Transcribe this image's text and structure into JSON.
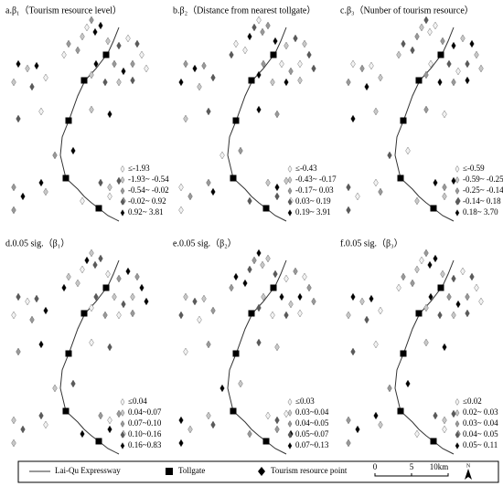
{
  "panels": [
    {
      "title": "a.β₁（Tourism resource level）",
      "legend": [
        "≤-1.93",
        "-1.93~ -0.54",
        "-0.54~ -0.02",
        "-0.02~ 0.92",
        "0.92~ 3.81"
      ]
    },
    {
      "title": "b.β₂（Distance from nearest tollgate）",
      "legend": [
        "≤-0.43",
        "-0.43~ -0.17",
        "-0.17~ 0.03",
        "0.03~ 0.19",
        "0.19~ 3.91"
      ]
    },
    {
      "title": "c.β₃（Nunber of tourism resource）",
      "legend": [
        "≤-0.59",
        "-0.59~ -0.25",
        "-0.25~ -0.14",
        "-0.14~ 0.18",
        "0.18~ 3.70"
      ]
    },
    {
      "title": "d.0.05 sig.（β₁）",
      "legend": [
        "≤0.04",
        "0.04~0.07",
        "0.07~0.10",
        "0.10~0.16",
        "0.16~0.83"
      ]
    },
    {
      "title": "e.0.05 sig.（β₂）",
      "legend": [
        "≤0.03",
        "0.03~0.04",
        "0.04~0.05",
        "0.05~0.07",
        "0.07~0.13"
      ]
    },
    {
      "title": "f.0.05 sig.（β₃）",
      "legend": [
        "≤0.02",
        "0.02~ 0.03",
        "0.03~ 0.04",
        "0.04~ 0.05",
        "0.05~ 0.11"
      ]
    }
  ],
  "footer": {
    "expressway": "Lai-Qu Expressway",
    "tollgate": "Tollgate",
    "point": "Tourism resource point",
    "scale": [
      "0",
      "5",
      "10km"
    ],
    "north": "N"
  }
}
